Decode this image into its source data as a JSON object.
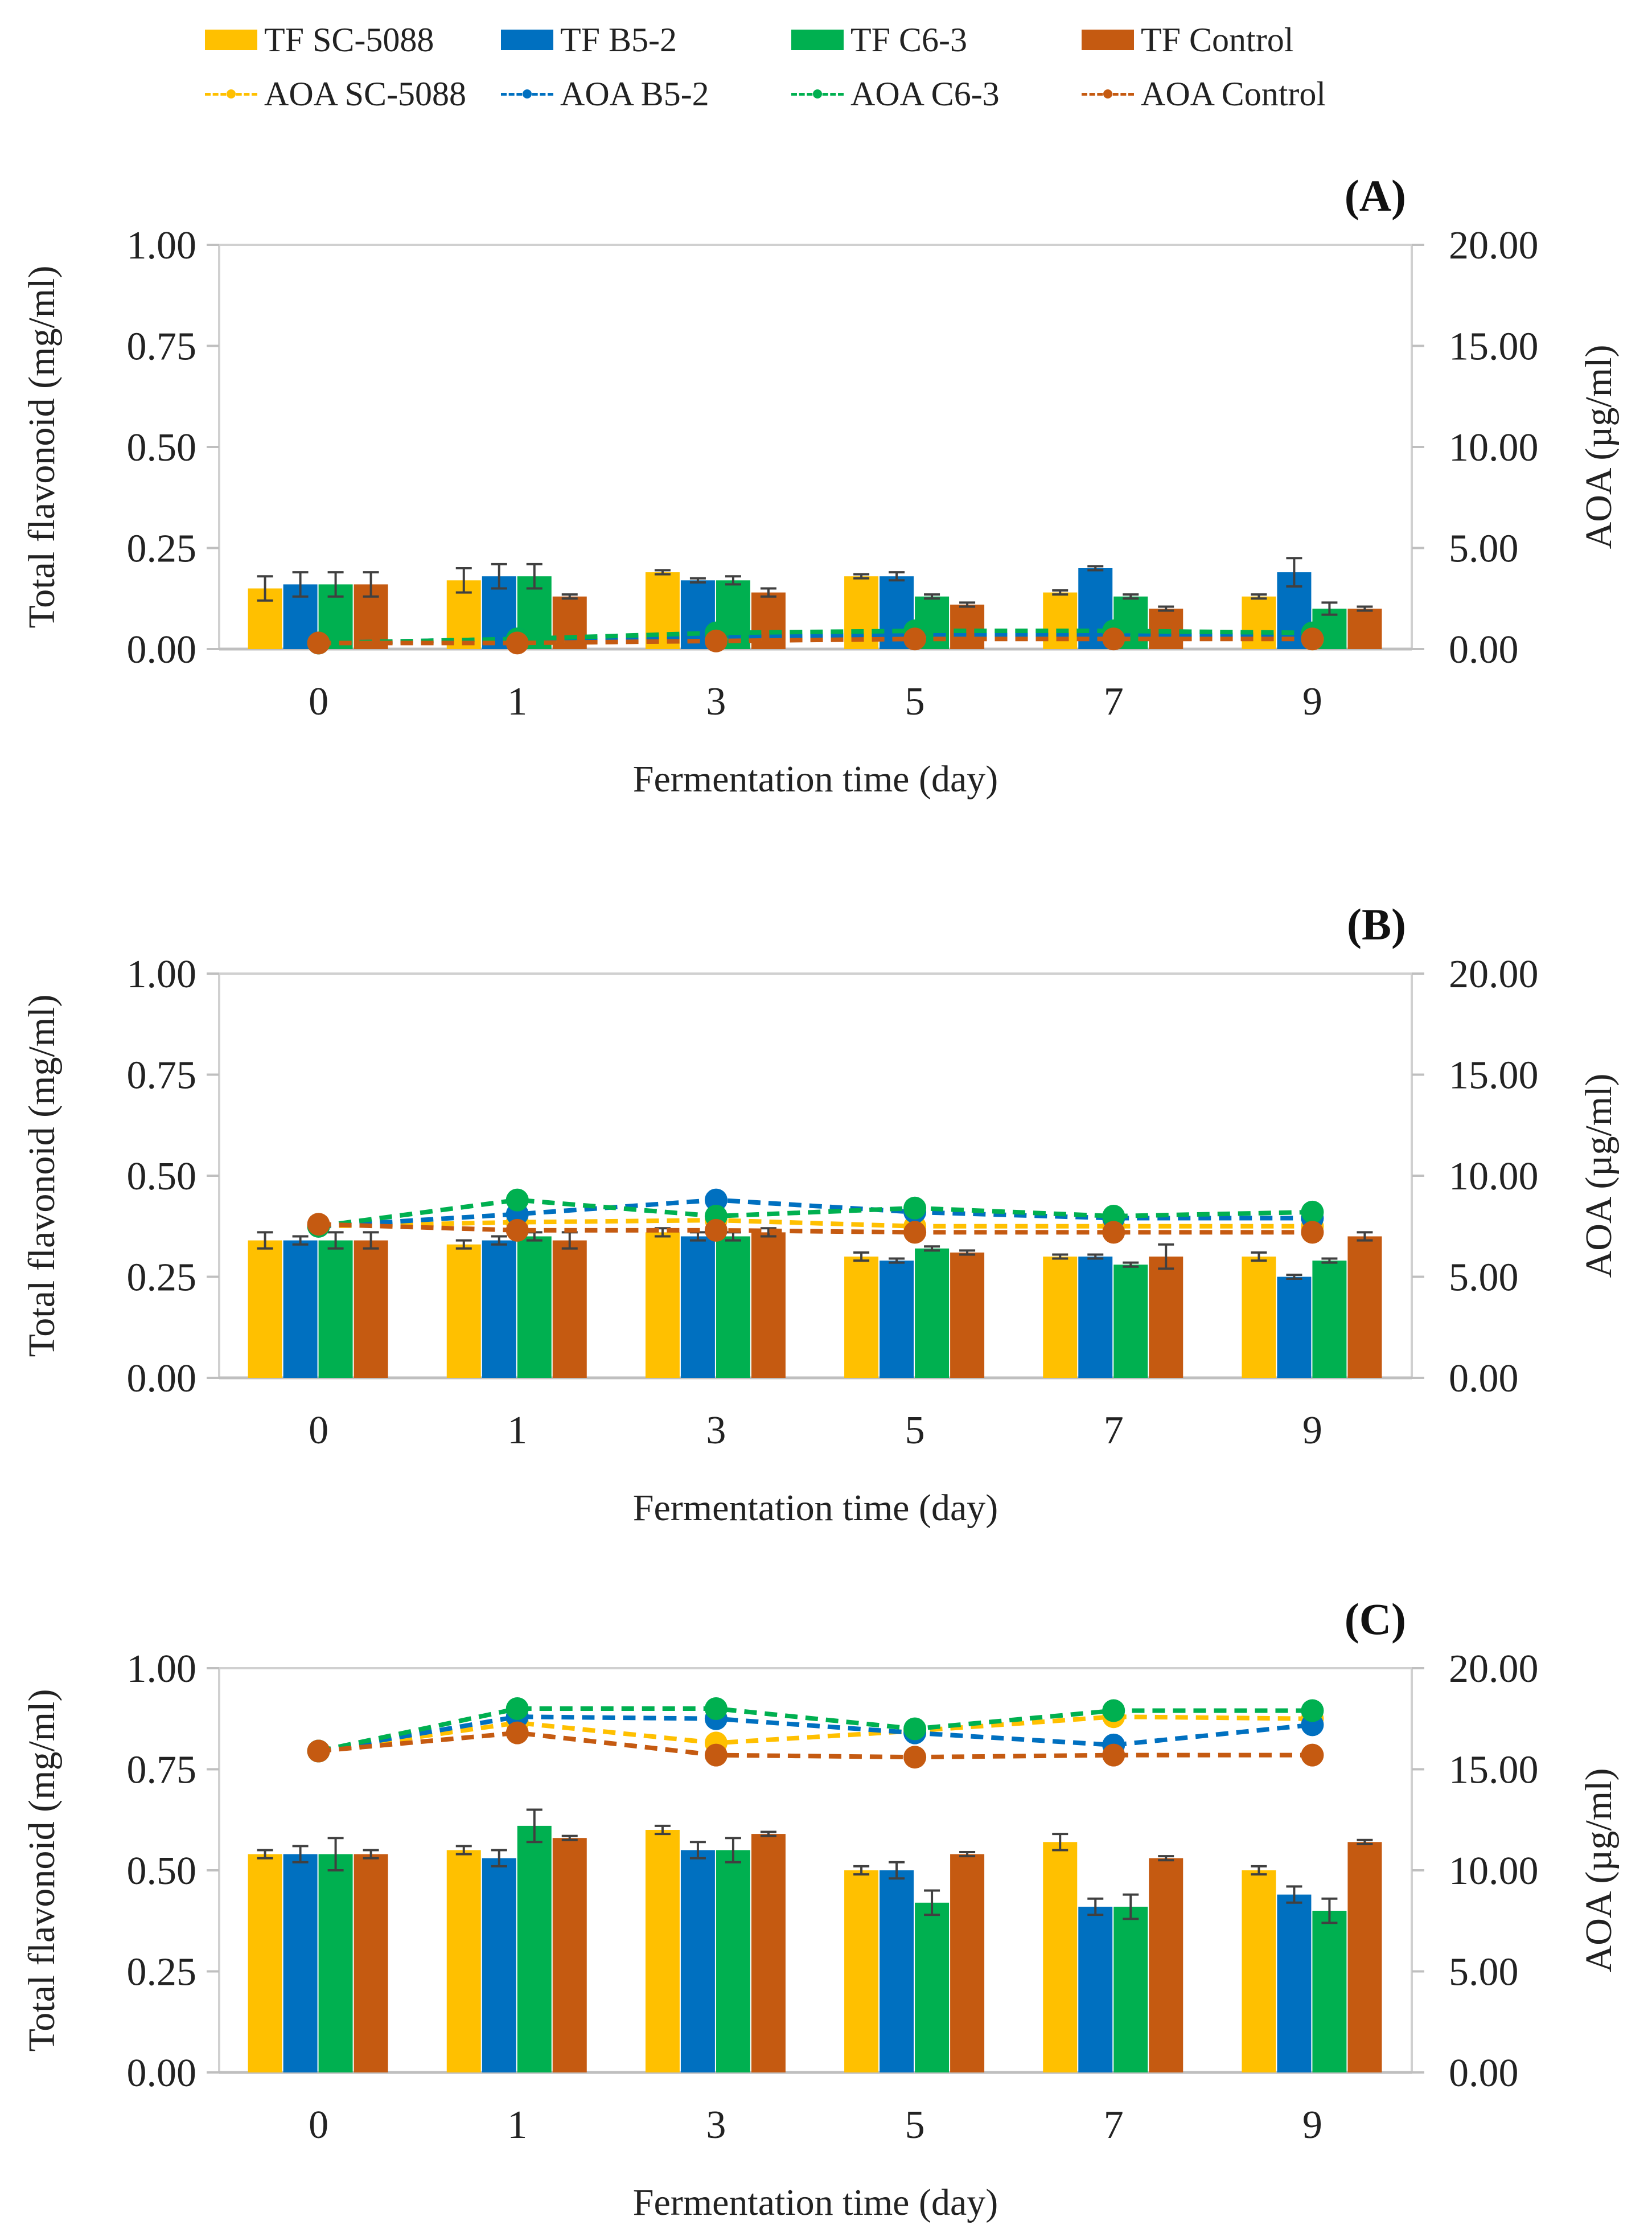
{
  "legend": [
    {
      "label": "TF SC-5088",
      "kind": "bar",
      "color": "#FFC000"
    },
    {
      "label": "TF B5-2",
      "kind": "bar",
      "color": "#0070C0"
    },
    {
      "label": "TF C6-3",
      "kind": "bar",
      "color": "#00B050"
    },
    {
      "label": "TF Control",
      "kind": "bar",
      "color": "#C55A11"
    },
    {
      "label": "AOA SC-5088",
      "kind": "line",
      "color": "#FFC000"
    },
    {
      "label": "AOA B5-2",
      "kind": "line",
      "color": "#0070C0"
    },
    {
      "label": "AOA C6-3",
      "kind": "line",
      "color": "#00B050"
    },
    {
      "label": "AOA Control",
      "kind": "line",
      "color": "#C55A11"
    }
  ],
  "chart_data": [
    {
      "type": "bar",
      "panel": "(A)",
      "categories": [
        "0",
        "1",
        "3",
        "5",
        "7",
        "9"
      ],
      "xlabel": "Fermentation time (day)",
      "ylabel": "Total flavonoid (mg/ml)",
      "y2label": "AOA (µg/ml)",
      "ylim": [
        0,
        1.0
      ],
      "y2lim": [
        0,
        20
      ],
      "yticks": [
        "0.00",
        "0.25",
        "0.50",
        "0.75",
        "1.00"
      ],
      "y2ticks": [
        "0.00",
        "5.00",
        "10.00",
        "15.00",
        "20.00"
      ],
      "series": [
        {
          "name": "TF SC-5088",
          "values": [
            0.15,
            0.17,
            0.19,
            0.18,
            0.14,
            0.13
          ],
          "errors": [
            0.03,
            0.03,
            0.005,
            0.005,
            0.005,
            0.005
          ]
        },
        {
          "name": "TF B5-2",
          "values": [
            0.16,
            0.18,
            0.17,
            0.18,
            0.2,
            0.19
          ],
          "errors": [
            0.03,
            0.03,
            0.005,
            0.01,
            0.005,
            0.035
          ]
        },
        {
          "name": "TF C6-3",
          "values": [
            0.16,
            0.18,
            0.17,
            0.13,
            0.13,
            0.1
          ],
          "errors": [
            0.03,
            0.03,
            0.01,
            0.005,
            0.005,
            0.015
          ]
        },
        {
          "name": "TF Control",
          "values": [
            0.16,
            0.13,
            0.14,
            0.11,
            0.1,
            0.1
          ],
          "errors": [
            0.03,
            0.005,
            0.01,
            0.005,
            0.005,
            0.005
          ]
        }
      ],
      "lines": [
        {
          "name": "AOA SC-5088",
          "values": [
            0.3,
            0.4,
            0.5,
            0.6,
            0.6,
            0.5
          ]
        },
        {
          "name": "AOA B5-2",
          "values": [
            0.3,
            0.5,
            0.6,
            0.7,
            0.7,
            0.7
          ]
        },
        {
          "name": "AOA C6-3",
          "values": [
            0.3,
            0.5,
            0.8,
            0.9,
            0.9,
            0.8
          ]
        },
        {
          "name": "AOA Control",
          "values": [
            0.3,
            0.3,
            0.4,
            0.5,
            0.5,
            0.5
          ]
        }
      ]
    },
    {
      "type": "bar",
      "panel": "(B)",
      "categories": [
        "0",
        "1",
        "3",
        "5",
        "7",
        "9"
      ],
      "xlabel": "Fermentation time (day)",
      "ylabel": "Total flavonoid (mg/ml)",
      "y2label": "AOA (µg/ml)",
      "ylim": [
        0,
        1.0
      ],
      "y2lim": [
        0,
        20
      ],
      "yticks": [
        "0.00",
        "0.25",
        "0.50",
        "0.75",
        "1.00"
      ],
      "y2ticks": [
        "0.00",
        "5.00",
        "10.00",
        "15.00",
        "20.00"
      ],
      "series": [
        {
          "name": "TF SC-5088",
          "values": [
            0.34,
            0.33,
            0.36,
            0.3,
            0.3,
            0.3
          ],
          "errors": [
            0.02,
            0.01,
            0.01,
            0.01,
            0.005,
            0.01
          ]
        },
        {
          "name": "TF B5-2",
          "values": [
            0.34,
            0.34,
            0.35,
            0.29,
            0.3,
            0.25
          ],
          "errors": [
            0.01,
            0.01,
            0.01,
            0.005,
            0.005,
            0.005
          ]
        },
        {
          "name": "TF C6-3",
          "values": [
            0.34,
            0.35,
            0.35,
            0.32,
            0.28,
            0.29
          ],
          "errors": [
            0.02,
            0.01,
            0.01,
            0.005,
            0.005,
            0.005
          ]
        },
        {
          "name": "TF Control",
          "values": [
            0.34,
            0.34,
            0.36,
            0.31,
            0.3,
            0.35
          ],
          "errors": [
            0.02,
            0.02,
            0.01,
            0.005,
            0.03,
            0.01
          ]
        }
      ],
      "lines": [
        {
          "name": "AOA SC-5088",
          "values": [
            7.5,
            7.7,
            7.8,
            7.5,
            7.5,
            7.5
          ]
        },
        {
          "name": "AOA B5-2",
          "values": [
            7.5,
            8.1,
            8.8,
            8.2,
            7.9,
            7.9
          ]
        },
        {
          "name": "AOA C6-3",
          "values": [
            7.5,
            8.8,
            8.0,
            8.4,
            8.0,
            8.2
          ]
        },
        {
          "name": "AOA Control",
          "values": [
            7.6,
            7.3,
            7.3,
            7.2,
            7.2,
            7.2
          ]
        }
      ]
    },
    {
      "type": "bar",
      "panel": "(C)",
      "categories": [
        "0",
        "1",
        "3",
        "5",
        "7",
        "9"
      ],
      "xlabel": "Fermentation time (day)",
      "ylabel": "Total flavonoid (mg/ml)",
      "y2label": "AOA (µg/ml)",
      "ylim": [
        0,
        1.0
      ],
      "y2lim": [
        0,
        20
      ],
      "yticks": [
        "0.00",
        "0.25",
        "0.50",
        "0.75",
        "1.00"
      ],
      "y2ticks": [
        "0.00",
        "5.00",
        "10.00",
        "15.00",
        "20.00"
      ],
      "series": [
        {
          "name": "TF SC-5088",
          "values": [
            0.54,
            0.55,
            0.6,
            0.5,
            0.57,
            0.5
          ],
          "errors": [
            0.01,
            0.01,
            0.01,
            0.01,
            0.02,
            0.01
          ]
        },
        {
          "name": "TF B5-2",
          "values": [
            0.54,
            0.53,
            0.55,
            0.5,
            0.41,
            0.44
          ],
          "errors": [
            0.02,
            0.02,
            0.02,
            0.02,
            0.02,
            0.02
          ]
        },
        {
          "name": "TF C6-3",
          "values": [
            0.54,
            0.61,
            0.55,
            0.42,
            0.41,
            0.4
          ],
          "errors": [
            0.04,
            0.04,
            0.03,
            0.03,
            0.03,
            0.03
          ]
        },
        {
          "name": "TF Control",
          "values": [
            0.54,
            0.58,
            0.59,
            0.54,
            0.53,
            0.57
          ],
          "errors": [
            0.01,
            0.005,
            0.005,
            0.005,
            0.005,
            0.005
          ]
        }
      ],
      "lines": [
        {
          "name": "AOA SC-5088",
          "values": [
            15.9,
            17.3,
            16.3,
            16.9,
            17.6,
            17.5
          ]
        },
        {
          "name": "AOA B5-2",
          "values": [
            15.9,
            17.6,
            17.5,
            16.8,
            16.2,
            17.2
          ]
        },
        {
          "name": "AOA C6-3",
          "values": [
            15.9,
            18.0,
            18.0,
            17.0,
            17.9,
            17.9
          ]
        },
        {
          "name": "AOA Control",
          "values": [
            15.9,
            16.8,
            15.7,
            15.6,
            15.7,
            15.7
          ]
        }
      ]
    }
  ]
}
